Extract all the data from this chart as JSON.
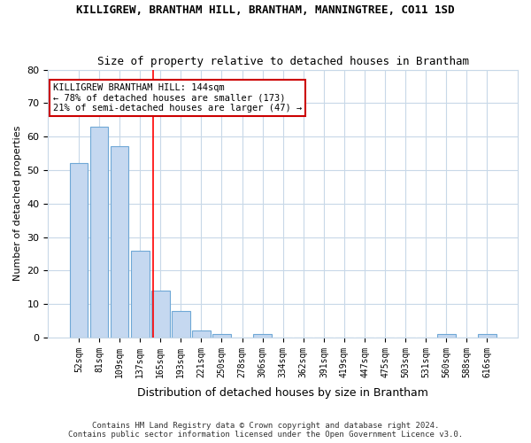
{
  "title": "KILLIGREW, BRANTHAM HILL, BRANTHAM, MANNINGTREE, CO11 1SD",
  "subtitle": "Size of property relative to detached houses in Brantham",
  "xlabel": "Distribution of detached houses by size in Brantham",
  "ylabel": "Number of detached properties",
  "footnote1": "Contains HM Land Registry data © Crown copyright and database right 2024.",
  "footnote2": "Contains public sector information licensed under the Open Government Licence v3.0.",
  "annotation_line1": "KILLIGREW BRANTHAM HILL: 144sqm",
  "annotation_line2": "← 78% of detached houses are smaller (173)",
  "annotation_line3": "21% of semi-detached houses are larger (47) →",
  "bar_labels": [
    "52sqm",
    "81sqm",
    "109sqm",
    "137sqm",
    "165sqm",
    "193sqm",
    "221sqm",
    "250sqm",
    "278sqm",
    "306sqm",
    "334sqm",
    "362sqm",
    "391sqm",
    "419sqm",
    "447sqm",
    "475sqm",
    "503sqm",
    "531sqm",
    "560sqm",
    "588sqm",
    "616sqm"
  ],
  "bar_values": [
    52,
    63,
    57,
    26,
    14,
    8,
    2,
    1,
    0,
    1,
    0,
    0,
    0,
    0,
    0,
    0,
    0,
    0,
    1,
    0,
    1
  ],
  "bar_color": "#c5d8f0",
  "bar_edge_color": "#6fa8d6",
  "red_line_x": 3.65,
  "ylim": [
    0,
    80
  ],
  "yticks": [
    0,
    10,
    20,
    30,
    40,
    50,
    60,
    70,
    80
  ],
  "grid_color": "#c8d8e8",
  "background_color": "#ffffff",
  "annotation_box_color": "#ffffff",
  "annotation_box_edge": "#cc0000"
}
